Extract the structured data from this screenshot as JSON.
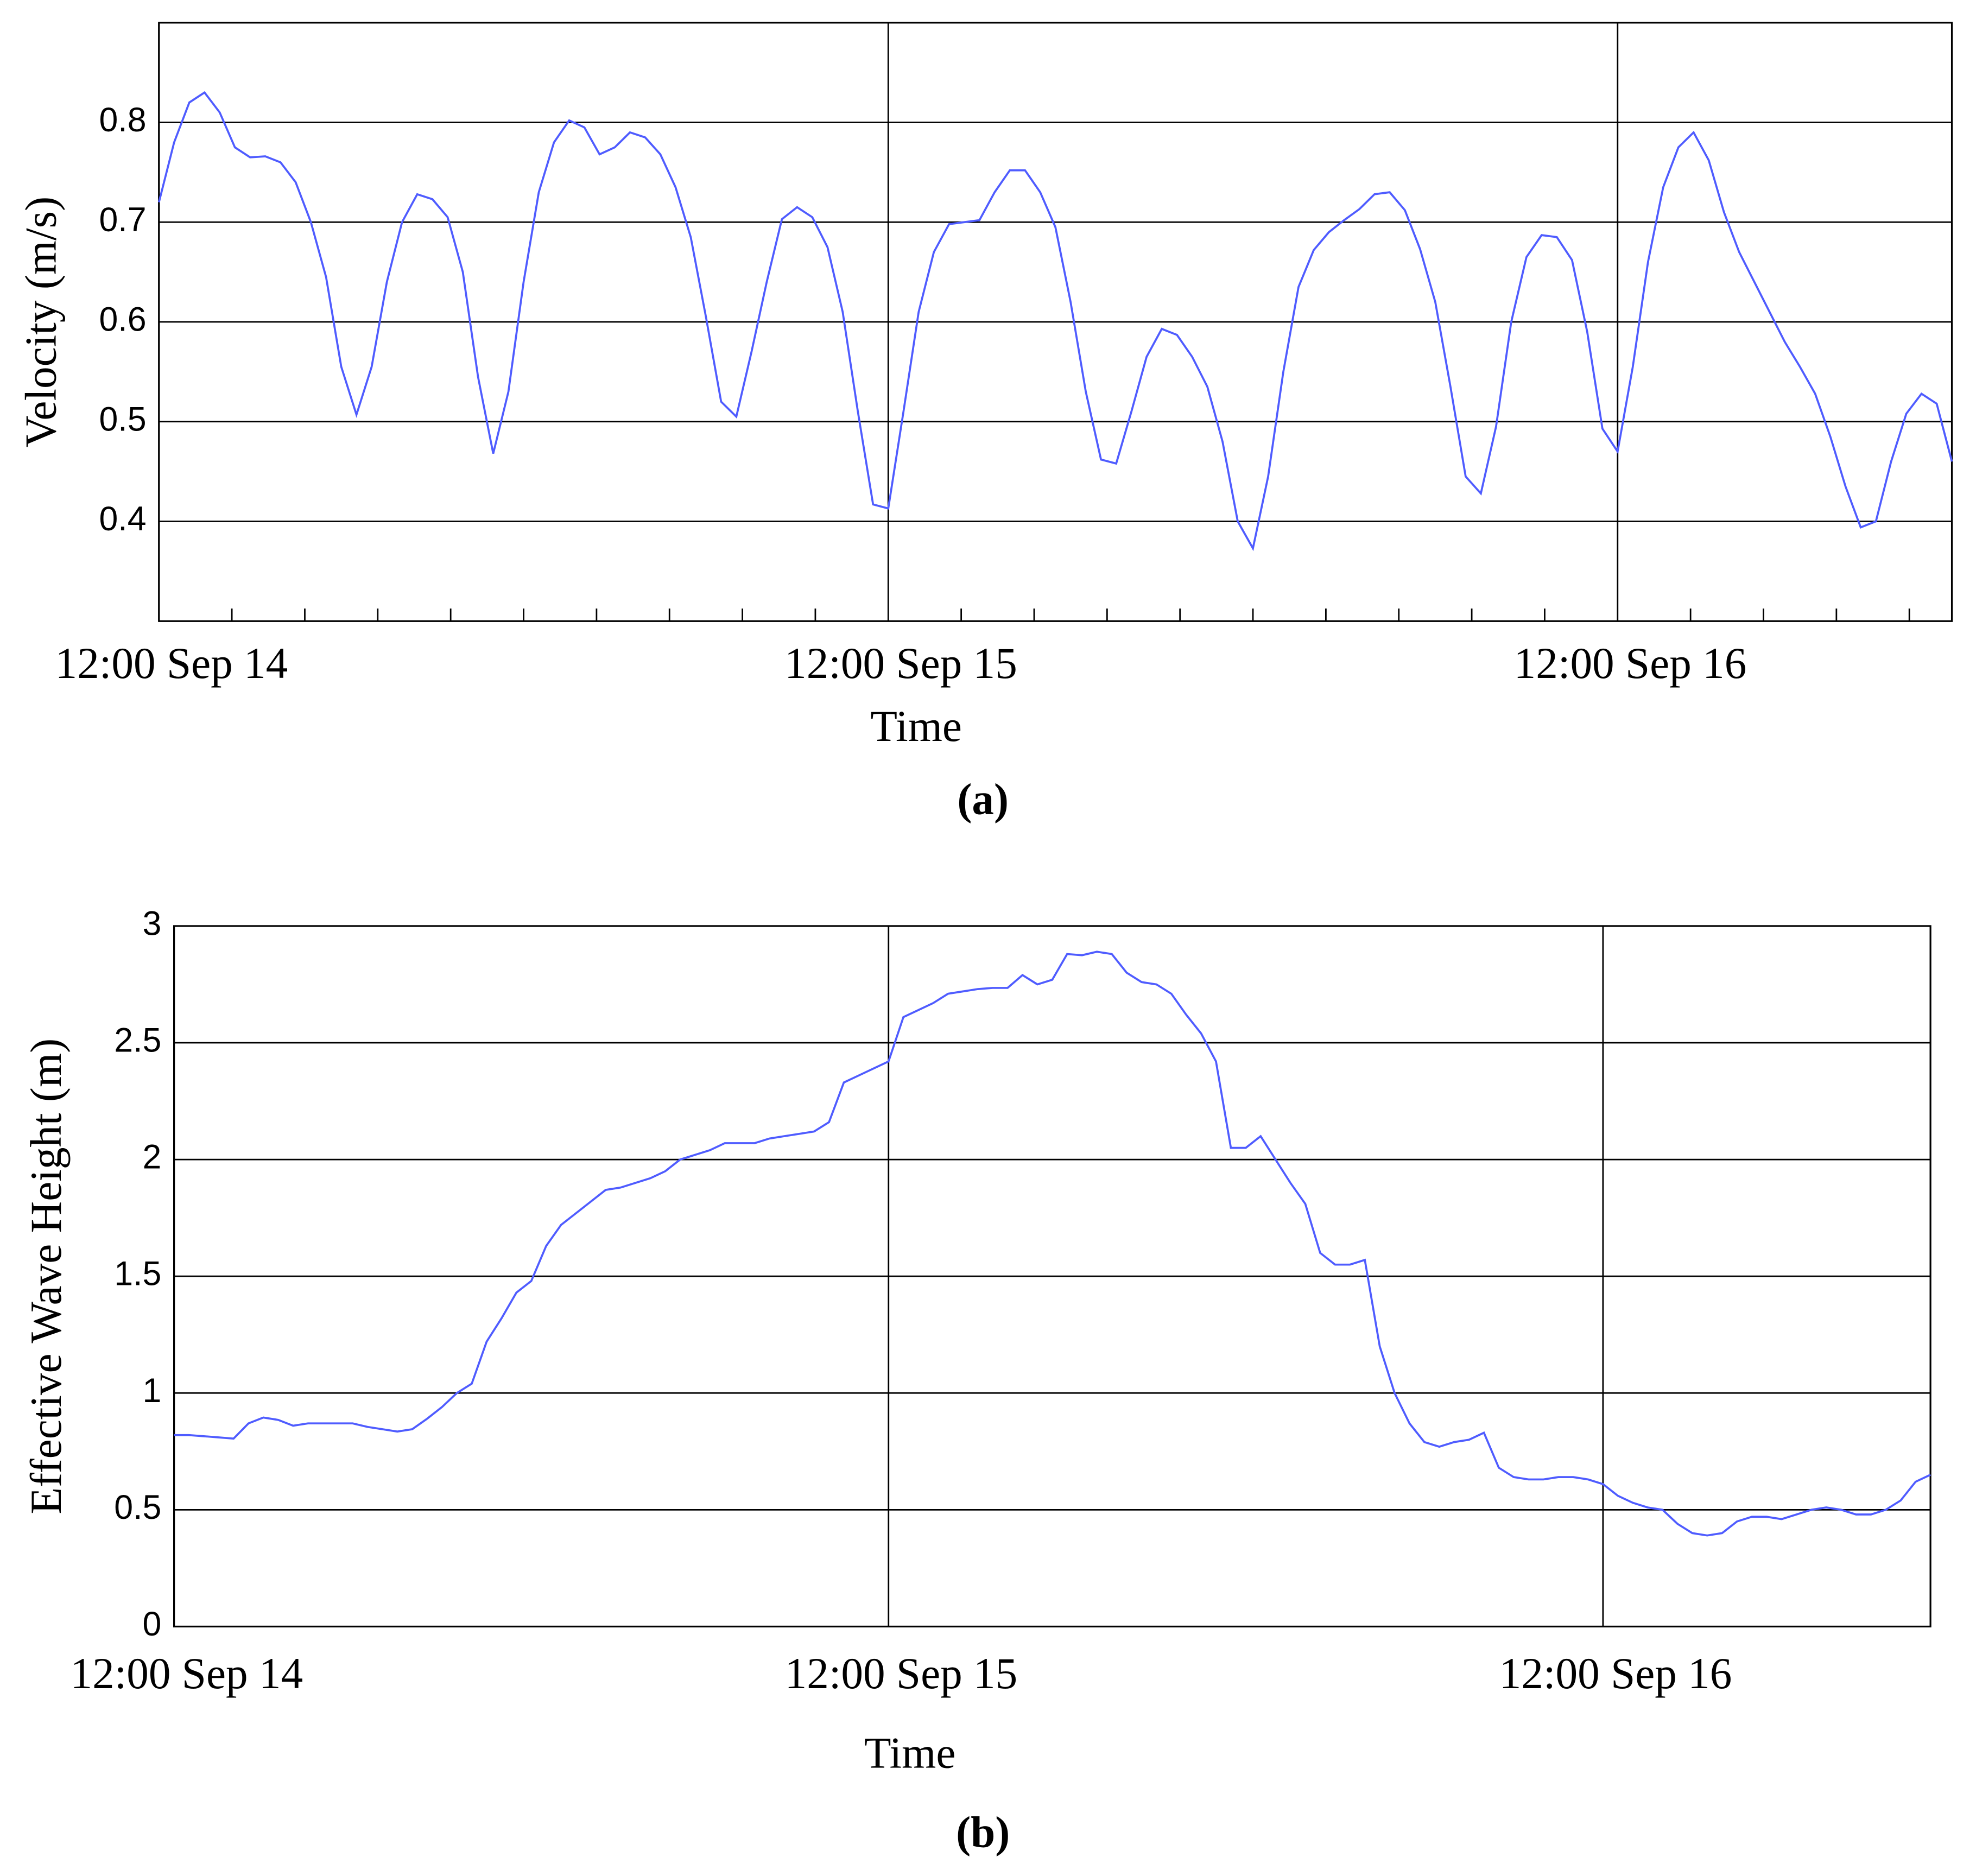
{
  "chart_data": [
    {
      "type": "line",
      "caption": "(a)",
      "ylabel": "Velocity  (m/s)",
      "xlabel": "Time",
      "color": "#4f5cff",
      "grid": true,
      "xlim": [
        12,
        71
      ],
      "ylim": [
        0.3,
        0.9
      ],
      "xticks": [
        {
          "value": 12,
          "label": "12:00 Sep 14"
        },
        {
          "value": 36,
          "label": "12:00 Sep 15"
        },
        {
          "value": 60,
          "label": "12:00 Sep 16"
        }
      ],
      "xminorticks": [
        14.4,
        16.8,
        19.2,
        21.6,
        24,
        26.4,
        28.8,
        31.2,
        33.6,
        38.4,
        40.8,
        43.2,
        45.6,
        48,
        50.4,
        52.8,
        55.2,
        57.6,
        62.4,
        64.8,
        67.2,
        69.6
      ],
      "yticks": [
        0.4,
        0.5,
        0.6,
        0.7,
        0.8
      ],
      "x": [
        12,
        12.5,
        13,
        13.5,
        14,
        14.5,
        15,
        15.5,
        16,
        16.5,
        17,
        17.5,
        18,
        18.5,
        19,
        19.5,
        20,
        20.5,
        21,
        21.5,
        22,
        22.5,
        23,
        23.5,
        24,
        24.5,
        25,
        25.5,
        26,
        26.5,
        27,
        27.5,
        28,
        28.5,
        29,
        29.5,
        30,
        30.5,
        31,
        31.5,
        32,
        32.5,
        33,
        33.5,
        34,
        34.5,
        35,
        35.5,
        36,
        36.5,
        37,
        37.5,
        38,
        38.5,
        39,
        39.5,
        40,
        40.5,
        41,
        41.5,
        42,
        42.5,
        43,
        43.5,
        44,
        44.5,
        45,
        45.5,
        46,
        46.5,
        47,
        47.5,
        48,
        48.5,
        49,
        49.5,
        50,
        50.5,
        51,
        51.5,
        52,
        52.5,
        53,
        53.5,
        54,
        54.5,
        55,
        55.5,
        56,
        56.5,
        57,
        57.5,
        58,
        58.5,
        59,
        59.5,
        60,
        60.5,
        61,
        61.5,
        62,
        62.5,
        63,
        63.5,
        64,
        64.5,
        65,
        65.5,
        66,
        66.5,
        67,
        67.5,
        68,
        68.5,
        69,
        69.5,
        70,
        70.5,
        71
      ],
      "values": [
        0.72,
        0.78,
        0.82,
        0.83,
        0.81,
        0.775,
        0.765,
        0.766,
        0.76,
        0.74,
        0.7,
        0.645,
        0.555,
        0.507,
        0.555,
        0.64,
        0.7,
        0.728,
        0.723,
        0.705,
        0.65,
        0.545,
        0.468,
        0.53,
        0.64,
        0.73,
        0.78,
        0.802,
        0.795,
        0.768,
        0.775,
        0.79,
        0.785,
        0.768,
        0.735,
        0.685,
        0.605,
        0.52,
        0.505,
        0.57,
        0.64,
        0.703,
        0.715,
        0.705,
        0.675,
        0.61,
        0.51,
        0.417,
        0.413,
        0.51,
        0.61,
        0.67,
        0.698,
        0.7,
        0.702,
        0.73,
        0.752,
        0.752,
        0.73,
        0.695,
        0.62,
        0.53,
        0.462,
        0.458,
        0.51,
        0.565,
        0.593,
        0.587,
        0.565,
        0.535,
        0.48,
        0.4,
        0.373,
        0.445,
        0.55,
        0.635,
        0.672,
        0.69,
        0.702,
        0.713,
        0.728,
        0.73,
        0.712,
        0.673,
        0.62,
        0.535,
        0.445,
        0.428,
        0.495,
        0.6,
        0.665,
        0.687,
        0.685,
        0.662,
        0.59,
        0.493,
        0.47,
        0.555,
        0.66,
        0.735,
        0.775,
        0.79,
        0.762,
        0.71,
        0.67,
        0.64,
        0.61,
        0.58,
        0.555,
        0.528,
        0.485,
        0.435,
        0.394,
        0.4,
        0.46,
        0.508,
        0.528,
        0.518,
        0.46
      ]
    },
    {
      "type": "line",
      "caption": "(b)",
      "ylabel": "Effective Wave Height (m)",
      "xlabel": "Time",
      "color": "#4f5cff",
      "grid": true,
      "xlim": [
        12,
        71
      ],
      "ylim": [
        0,
        3
      ],
      "xticks": [
        {
          "value": 12,
          "label": "12:00 Sep 14"
        },
        {
          "value": 36,
          "label": "12:00 Sep 15"
        },
        {
          "value": 60,
          "label": "12:00 Sep 16"
        }
      ],
      "yticks": [
        0,
        0.5,
        1,
        1.5,
        2,
        2.5,
        3
      ],
      "x": [
        12,
        12.5,
        13,
        13.5,
        14,
        14.5,
        15,
        15.5,
        16,
        16.5,
        17,
        17.5,
        18,
        18.5,
        19,
        19.5,
        20,
        20.5,
        21,
        21.5,
        22,
        22.5,
        23,
        23.5,
        24,
        24.5,
        25,
        25.5,
        26,
        26.5,
        27,
        27.5,
        28,
        28.5,
        29,
        29.5,
        30,
        30.5,
        31,
        31.5,
        32,
        32.5,
        33,
        33.5,
        34,
        34.5,
        35,
        35.5,
        36,
        36.5,
        37,
        37.5,
        38,
        38.5,
        39,
        39.5,
        40,
        40.5,
        41,
        41.5,
        42,
        42.5,
        43,
        43.5,
        44,
        44.5,
        45,
        45.5,
        46,
        46.5,
        47,
        47.5,
        48,
        48.5,
        49,
        49.5,
        50,
        50.5,
        51,
        51.5,
        52,
        52.5,
        53,
        53.5,
        54,
        54.5,
        55,
        55.5,
        56,
        56.5,
        57,
        57.5,
        58,
        58.5,
        59,
        59.5,
        60,
        60.5,
        61,
        61.5,
        62,
        62.5,
        63,
        63.5,
        64,
        64.5,
        65,
        65.5,
        66,
        66.5,
        67,
        67.5,
        68,
        68.5,
        69,
        69.5,
        70,
        70.5,
        71
      ],
      "values": [
        0.82,
        0.82,
        0.815,
        0.81,
        0.805,
        0.87,
        0.895,
        0.885,
        0.86,
        0.87,
        0.87,
        0.87,
        0.87,
        0.855,
        0.845,
        0.835,
        0.845,
        0.89,
        0.94,
        1.0,
        1.04,
        1.22,
        1.32,
        1.43,
        1.48,
        1.63,
        1.72,
        1.77,
        1.82,
        1.87,
        1.88,
        1.9,
        1.92,
        1.95,
        2.0,
        2.02,
        2.04,
        2.07,
        2.07,
        2.07,
        2.09,
        2.1,
        2.11,
        2.12,
        2.16,
        2.33,
        2.36,
        2.39,
        2.42,
        2.61,
        2.64,
        2.67,
        2.71,
        2.72,
        2.73,
        2.735,
        2.735,
        2.79,
        2.75,
        2.77,
        2.88,
        2.875,
        2.89,
        2.88,
        2.8,
        2.76,
        2.75,
        2.71,
        2.62,
        2.54,
        2.42,
        2.05,
        2.05,
        2.1,
        2.0,
        1.9,
        1.81,
        1.6,
        1.55,
        1.55,
        1.57,
        1.2,
        1.0,
        0.87,
        0.79,
        0.77,
        0.79,
        0.8,
        0.83,
        0.68,
        0.64,
        0.63,
        0.63,
        0.64,
        0.64,
        0.63,
        0.61,
        0.56,
        0.53,
        0.51,
        0.5,
        0.44,
        0.4,
        0.39,
        0.4,
        0.45,
        0.47,
        0.47,
        0.46,
        0.48,
        0.5,
        0.51,
        0.5,
        0.48,
        0.48,
        0.5,
        0.54,
        0.62,
        0.65
      ]
    }
  ]
}
